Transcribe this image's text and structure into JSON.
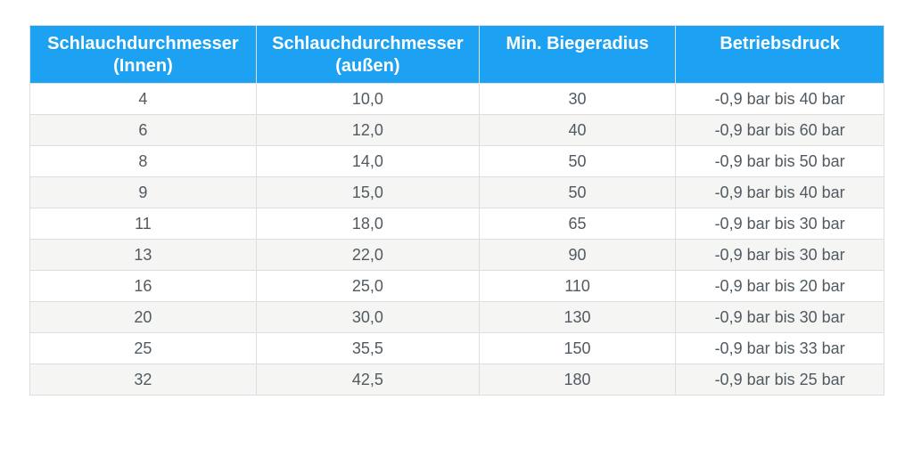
{
  "colors": {
    "header_bg": "#1da1f2",
    "header_text": "#ffffff",
    "row_bg": "#ffffff",
    "row_alt_bg": "#f5f5f4",
    "border": "#dedede",
    "cell_text": "#515a61"
  },
  "chart_data": {
    "type": "table",
    "title": "",
    "columns": [
      "Schlauchdurchmesser (Innen)",
      "Schlauchdurchmesser (außen)",
      "Min. Biegeradius",
      "Betriebsdruck"
    ],
    "rows": [
      [
        "4",
        "10,0",
        "30",
        "-0,9 bar bis 40 bar"
      ],
      [
        "6",
        "12,0",
        "40",
        "-0,9 bar bis 60 bar"
      ],
      [
        "8",
        "14,0",
        "50",
        "-0,9 bar bis 50 bar"
      ],
      [
        "9",
        "15,0",
        "50",
        "-0,9 bar bis 40 bar"
      ],
      [
        "11",
        "18,0",
        "65",
        "-0,9 bar bis 30 bar"
      ],
      [
        "13",
        "22,0",
        "90",
        "-0,9 bar bis 30 bar"
      ],
      [
        "16",
        "25,0",
        "110",
        "-0,9 bar bis 20 bar"
      ],
      [
        "20",
        "30,0",
        "130",
        "-0,9 bar bis 30 bar"
      ],
      [
        "25",
        "35,5",
        "150",
        "-0,9 bar bis 33 bar"
      ],
      [
        "32",
        "42,5",
        "180",
        "-0,9 bar bis 25 bar"
      ]
    ]
  }
}
